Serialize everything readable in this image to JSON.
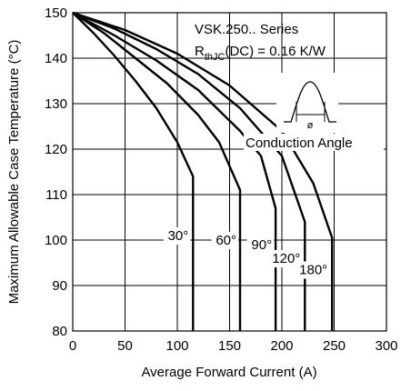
{
  "chart_data": {
    "type": "line",
    "xlabel": "Average Forward Current (A)",
    "ylabel": "Maximum Allowable Case Temperature (°C)",
    "xlim": [
      0,
      300
    ],
    "ylim": [
      80,
      150
    ],
    "x_ticks": [
      "0",
      "50",
      "100",
      "150",
      "200",
      "250",
      "300"
    ],
    "y_ticks": [
      "80",
      "90",
      "100",
      "110",
      "120",
      "130",
      "140",
      "150"
    ],
    "grid": true,
    "annotation": {
      "series_line": "VSK.250.. Series",
      "rth_main": "R",
      "rth_sub": "thJC",
      "rth_rest": "(DC) = 0.16 K/W",
      "conduction_label": "Conduction Angle",
      "phi_symbol": "ø"
    },
    "series": [
      {
        "name": "30°",
        "x": [
          0,
          20,
          40,
          60,
          80,
          100,
          115,
          115
        ],
        "y": [
          150,
          145.5,
          140.5,
          135,
          129,
          121.5,
          114,
          80
        ]
      },
      {
        "name": "60°",
        "x": [
          0,
          30,
          60,
          90,
          120,
          140,
          160,
          160
        ],
        "y": [
          150,
          145.5,
          140,
          134.5,
          127.5,
          121.5,
          111,
          80
        ]
      },
      {
        "name": "90°",
        "x": [
          0,
          40,
          80,
          120,
          160,
          180,
          194,
          194
        ],
        "y": [
          150,
          145,
          139.5,
          133,
          124,
          118.5,
          107,
          80
        ]
      },
      {
        "name": "120°",
        "x": [
          0,
          40,
          80,
          120,
          160,
          200,
          222,
          222
        ],
        "y": [
          150,
          146.5,
          142,
          136.5,
          129,
          118.5,
          104,
          80
        ]
      },
      {
        "name": "180°",
        "x": [
          0,
          50,
          100,
          150,
          200,
          230,
          248,
          248
        ],
        "y": [
          150,
          146.2,
          141,
          134,
          124,
          112.5,
          100.5,
          80
        ]
      }
    ]
  }
}
